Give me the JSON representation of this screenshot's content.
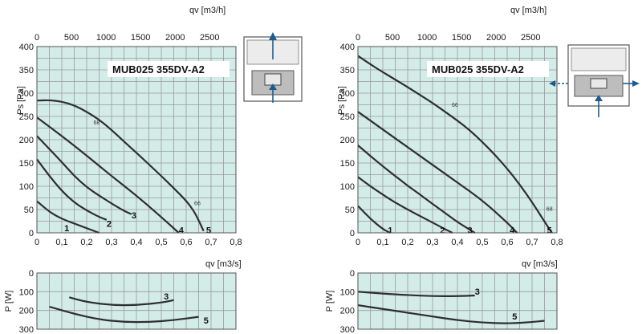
{
  "colors": {
    "plot_bg": "#d3ece8",
    "grid": "#9a9a9a",
    "curve": "#2e2e2e",
    "arrow": "#1f5a8c",
    "diagram_gray": "#bdbdbd"
  },
  "chart_data": [
    {
      "type": "line",
      "model": "MUB025 355DV-A2",
      "xlabel": "qv [m3/s]",
      "x2label": "qv [m3/h]",
      "ylabel": "Ps [Pa]",
      "xlim": [
        0,
        0.8
      ],
      "ylim": [
        0,
        400
      ],
      "xticks": [
        "0",
        "0,1",
        "0,2",
        "0,3",
        "0,4",
        "0,5",
        "0,6",
        "0,7",
        "0,8"
      ],
      "x2ticks": [
        "0",
        "500",
        "1000",
        "1500",
        "2000",
        "2500"
      ],
      "yticks": [
        "0",
        "50",
        "100",
        "150",
        "200",
        "250",
        "300",
        "350",
        "400"
      ],
      "series": [
        {
          "name": "1",
          "x": [
            0,
            0.05,
            0.1,
            0.15,
            0.2,
            0.25
          ],
          "y": [
            68,
            45,
            30,
            20,
            10,
            0
          ]
        },
        {
          "name": "2",
          "x": [
            0,
            0.05,
            0.1,
            0.15,
            0.2,
            0.25,
            0.28
          ],
          "y": [
            158,
            122,
            90,
            65,
            48,
            34,
            28
          ]
        },
        {
          "name": "3",
          "x": [
            0,
            0.05,
            0.1,
            0.15,
            0.2,
            0.25,
            0.3,
            0.35,
            0.38
          ],
          "y": [
            208,
            180,
            152,
            122,
            98,
            80,
            63,
            47,
            40
          ]
        },
        {
          "name": "4",
          "x": [
            0,
            0.1,
            0.2,
            0.3,
            0.4,
            0.5,
            0.57
          ],
          "y": [
            248,
            208,
            166,
            122,
            80,
            34,
            0
          ]
        },
        {
          "name": "5",
          "x": [
            0,
            0.05,
            0.1,
            0.15,
            0.2,
            0.25,
            0.3,
            0.35,
            0.4,
            0.45,
            0.5,
            0.55,
            0.6,
            0.63,
            0.65,
            0.67
          ],
          "y": [
            284,
            285,
            282,
            274,
            260,
            243,
            221,
            196,
            172,
            147,
            122,
            96,
            69,
            48,
            27,
            4
          ]
        }
      ],
      "labels": [
        {
          "text": "1",
          "x": 0.12,
          "y": 10
        },
        {
          "text": "2",
          "x": 0.29,
          "y": 20
        },
        {
          "text": "3",
          "x": 0.39,
          "y": 38
        },
        {
          "text": "4",
          "x": 0.58,
          "y": 6
        },
        {
          "text": "5",
          "x": 0.69,
          "y": 6
        },
        {
          "text": "68",
          "x": 0.24,
          "y": 240,
          "small": true
        },
        {
          "text": "66",
          "x": 0.645,
          "y": 66,
          "small": true
        }
      ]
    },
    {
      "type": "line",
      "model": "MUB025 355DV-A2",
      "xlabel": "qv [m3/s]",
      "x2label": "qv [m3/h]",
      "ylabel": "Ps [Pa]",
      "xlim": [
        0,
        0.8
      ],
      "ylim": [
        0,
        400
      ],
      "xticks": [
        "0",
        "0,1",
        "0,2",
        "0,3",
        "0,4",
        "0,5",
        "0,6",
        "0,7",
        "0,8"
      ],
      "x2ticks": [
        "0",
        "500",
        "1000",
        "1500",
        "2000",
        "2500"
      ],
      "yticks": [
        "0",
        "50",
        "100",
        "150",
        "200",
        "250",
        "300",
        "350",
        "400"
      ],
      "series": [
        {
          "name": "1",
          "x": [
            0,
            0.05,
            0.1,
            0.13
          ],
          "y": [
            58,
            30,
            8,
            0
          ]
        },
        {
          "name": "2",
          "x": [
            0,
            0.05,
            0.1,
            0.15,
            0.2,
            0.25,
            0.3,
            0.35,
            0.38
          ],
          "y": [
            120,
            100,
            82,
            65,
            50,
            36,
            22,
            8,
            0
          ]
        },
        {
          "name": "3",
          "x": [
            0,
            0.05,
            0.1,
            0.15,
            0.2,
            0.25,
            0.3,
            0.35,
            0.4,
            0.47
          ],
          "y": [
            188,
            165,
            143,
            122,
            101,
            82,
            62,
            43,
            23,
            0
          ]
        },
        {
          "name": "4",
          "x": [
            0,
            0.1,
            0.2,
            0.3,
            0.4,
            0.5,
            0.6,
            0.64
          ],
          "y": [
            260,
            222,
            184,
            146,
            108,
            70,
            22,
            0
          ]
        },
        {
          "name": "5",
          "x": [
            0,
            0.05,
            0.1,
            0.15,
            0.2,
            0.25,
            0.3,
            0.35,
            0.4,
            0.45,
            0.5,
            0.55,
            0.6,
            0.65,
            0.7,
            0.75,
            0.78
          ],
          "y": [
            380,
            362,
            345,
            329,
            313,
            296,
            279,
            260,
            241,
            220,
            195,
            168,
            138,
            104,
            66,
            24,
            0
          ]
        }
      ],
      "labels": [
        {
          "text": "1",
          "x": 0.13,
          "y": 6
        },
        {
          "text": "2",
          "x": 0.34,
          "y": 6
        },
        {
          "text": "3",
          "x": 0.45,
          "y": 6
        },
        {
          "text": "4",
          "x": 0.62,
          "y": 6
        },
        {
          "text": "5",
          "x": 0.77,
          "y": 6
        },
        {
          "text": "66",
          "x": 0.39,
          "y": 278,
          "small": true
        },
        {
          "text": "68",
          "x": 0.77,
          "y": 54,
          "small": true
        }
      ]
    },
    {
      "type": "line",
      "ylabel": "P [W]",
      "xlim": [
        0,
        0.8
      ],
      "ylim": [
        0,
        300
      ],
      "y_inverted": true,
      "yticks": [
        "0",
        "100",
        "200",
        "300"
      ],
      "series": [
        {
          "name": "3",
          "x": [
            0.13,
            0.2,
            0.3,
            0.4,
            0.5,
            0.55
          ],
          "y": [
            130,
            155,
            172,
            172,
            158,
            145
          ]
        },
        {
          "name": "5",
          "x": [
            0.05,
            0.15,
            0.25,
            0.35,
            0.45,
            0.55,
            0.65
          ],
          "y": [
            180,
            218,
            248,
            262,
            262,
            252,
            234
          ]
        }
      ],
      "labels": [
        {
          "text": "3",
          "x": 0.52,
          "y": 125
        },
        {
          "text": "5",
          "x": 0.68,
          "y": 252
        }
      ]
    },
    {
      "type": "line",
      "ylabel": "P [W]",
      "xlim": [
        0,
        0.8
      ],
      "ylim": [
        0,
        300
      ],
      "y_inverted": true,
      "yticks": [
        "0",
        "100",
        "200",
        "300"
      ],
      "series": [
        {
          "name": "3",
          "x": [
            0,
            0.1,
            0.2,
            0.3,
            0.4,
            0.47
          ],
          "y": [
            100,
            110,
            118,
            124,
            124,
            120
          ]
        },
        {
          "name": "5",
          "x": [
            0,
            0.1,
            0.2,
            0.3,
            0.4,
            0.5,
            0.6,
            0.7,
            0.75
          ],
          "y": [
            172,
            192,
            212,
            232,
            252,
            265,
            270,
            262,
            255
          ]
        }
      ],
      "labels": [
        {
          "text": "3",
          "x": 0.48,
          "y": 98
        },
        {
          "text": "5",
          "x": 0.63,
          "y": 232
        }
      ]
    }
  ]
}
